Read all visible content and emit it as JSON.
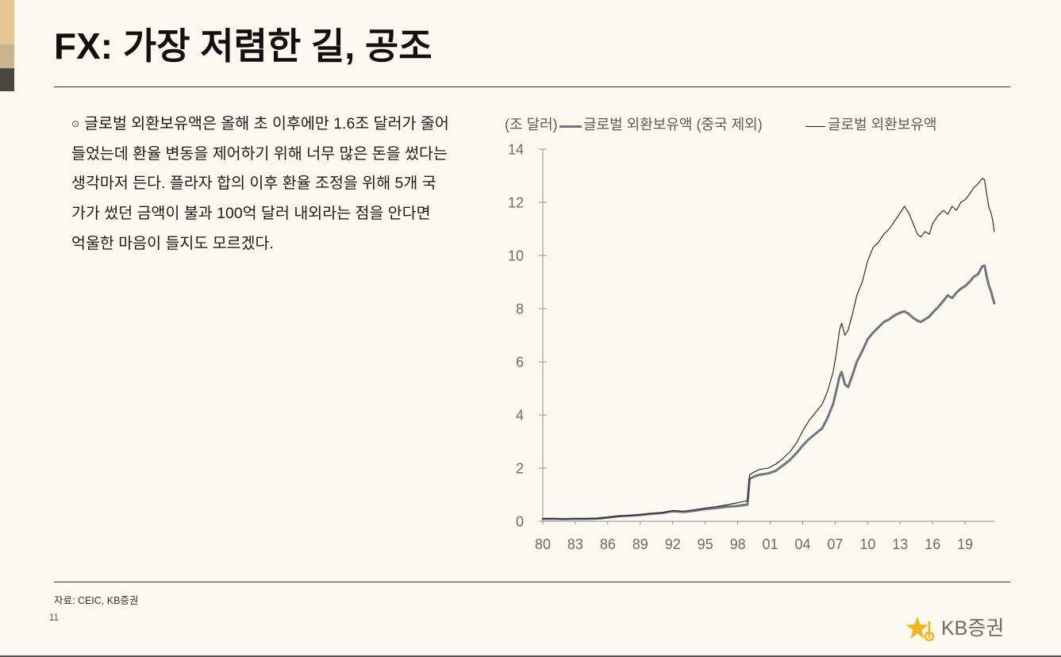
{
  "colors": {
    "background": "#fbf9ef",
    "accent_strip": [
      "#e6c692",
      "#c9b48f",
      "#4b453f"
    ],
    "logo": "#f1b51c"
  },
  "slide": {
    "title": "FX: 가장 저렴한 길, 공조",
    "bullet": "⊙",
    "body_lines": [
      "글로벌 외환보유액은 올해 초 이후에만 1.6조 달러가 줄어",
      "들었는데 환율 변동을 제어하기 위해 너무 많은 돈을 썼다는",
      "생각마저 든다. 플라자 합의 이후 환율 조정을 위해 5개 국",
      "가가 썼던 금액이 불과 100억 달러 내외라는 점을 안다면",
      "억울한 마음이 들지도 모르겠다."
    ],
    "source": "자료: CEIC, KB증권",
    "page_number": "11",
    "logo": {
      "icon": "kb-star-icon",
      "text": "KB증권"
    }
  },
  "chart_data": {
    "type": "line",
    "ylabel": "(조 달러)",
    "xlabel": "",
    "ylim": [
      0,
      14
    ],
    "yticks": [
      0,
      2,
      4,
      6,
      8,
      10,
      12,
      14
    ],
    "xlim": [
      1980,
      2021.7
    ],
    "xticks": [
      1980,
      1983,
      1986,
      1989,
      1992,
      1995,
      1998,
      2001,
      2004,
      2007,
      2010,
      2013,
      2016,
      2019
    ],
    "xtick_labels": [
      "80",
      "83",
      "86",
      "89",
      "92",
      "95",
      "98",
      "01",
      "04",
      "07",
      "10",
      "13",
      "16",
      "19"
    ],
    "grid": false,
    "legend_position": "top",
    "x": [
      1980,
      1981,
      1982,
      1983,
      1984,
      1985,
      1986,
      1987,
      1988,
      1989,
      1990,
      1991,
      1992,
      1993,
      1994,
      1995,
      1996,
      1997,
      1998,
      1998.9,
      1999.1,
      1999.5,
      2000,
      2000.8,
      2001.5,
      2002,
      2002.8,
      2003.5,
      2004,
      2004.6,
      2005.2,
      2005.8,
      2006.3,
      2006.8,
      2007.1,
      2007.4,
      2007.6,
      2007.9,
      2008.2,
      2008.6,
      2009,
      2009.5,
      2010,
      2010.5,
      2011,
      2011.5,
      2012,
      2012.5,
      2013,
      2013.4,
      2013.8,
      2014.2,
      2014.6,
      2014.9,
      2015.3,
      2015.7,
      2016,
      2016.5,
      2017,
      2017.4,
      2017.8,
      2018.2,
      2018.6,
      2019,
      2019.4,
      2019.8,
      2020.2,
      2020.6,
      2020.8,
      2021,
      2021.2,
      2021.4,
      2021.55,
      2021.7
    ],
    "series": [
      {
        "name": "글로벌 외환보유액 (중국 제외)",
        "color": "#6e7583",
        "values": [
          0.09,
          0.09,
          0.08,
          0.09,
          0.09,
          0.1,
          0.14,
          0.19,
          0.21,
          0.24,
          0.28,
          0.31,
          0.38,
          0.35,
          0.4,
          0.46,
          0.5,
          0.55,
          0.58,
          0.63,
          1.6,
          1.68,
          1.75,
          1.8,
          1.9,
          2.05,
          2.3,
          2.6,
          2.85,
          3.1,
          3.3,
          3.5,
          3.9,
          4.4,
          4.9,
          5.45,
          5.62,
          5.15,
          5.05,
          5.5,
          6.0,
          6.4,
          6.85,
          7.1,
          7.3,
          7.5,
          7.6,
          7.75,
          7.85,
          7.9,
          7.8,
          7.65,
          7.55,
          7.5,
          7.6,
          7.7,
          7.85,
          8.05,
          8.3,
          8.5,
          8.4,
          8.6,
          8.75,
          8.85,
          9.0,
          9.2,
          9.3,
          9.6,
          9.62,
          9.2,
          8.85,
          8.65,
          8.4,
          8.2
        ]
      },
      {
        "name": "글로벌 외환보유액",
        "color": "#1e1e1e",
        "values": [
          0.1,
          0.1,
          0.09,
          0.1,
          0.1,
          0.11,
          0.15,
          0.2,
          0.22,
          0.25,
          0.3,
          0.33,
          0.4,
          0.38,
          0.43,
          0.5,
          0.55,
          0.62,
          0.7,
          0.78,
          1.75,
          1.85,
          1.95,
          2.0,
          2.15,
          2.3,
          2.6,
          3.0,
          3.4,
          3.8,
          4.1,
          4.4,
          4.9,
          5.6,
          6.3,
          7.2,
          7.45,
          7.0,
          7.2,
          7.8,
          8.5,
          9.0,
          9.8,
          10.3,
          10.5,
          10.8,
          11.0,
          11.3,
          11.6,
          11.85,
          11.6,
          11.2,
          10.8,
          10.7,
          10.9,
          10.8,
          11.2,
          11.5,
          11.7,
          11.55,
          11.85,
          11.7,
          12.0,
          12.1,
          12.3,
          12.55,
          12.7,
          12.9,
          12.85,
          12.3,
          11.8,
          11.6,
          11.3,
          10.9
        ]
      }
    ]
  }
}
